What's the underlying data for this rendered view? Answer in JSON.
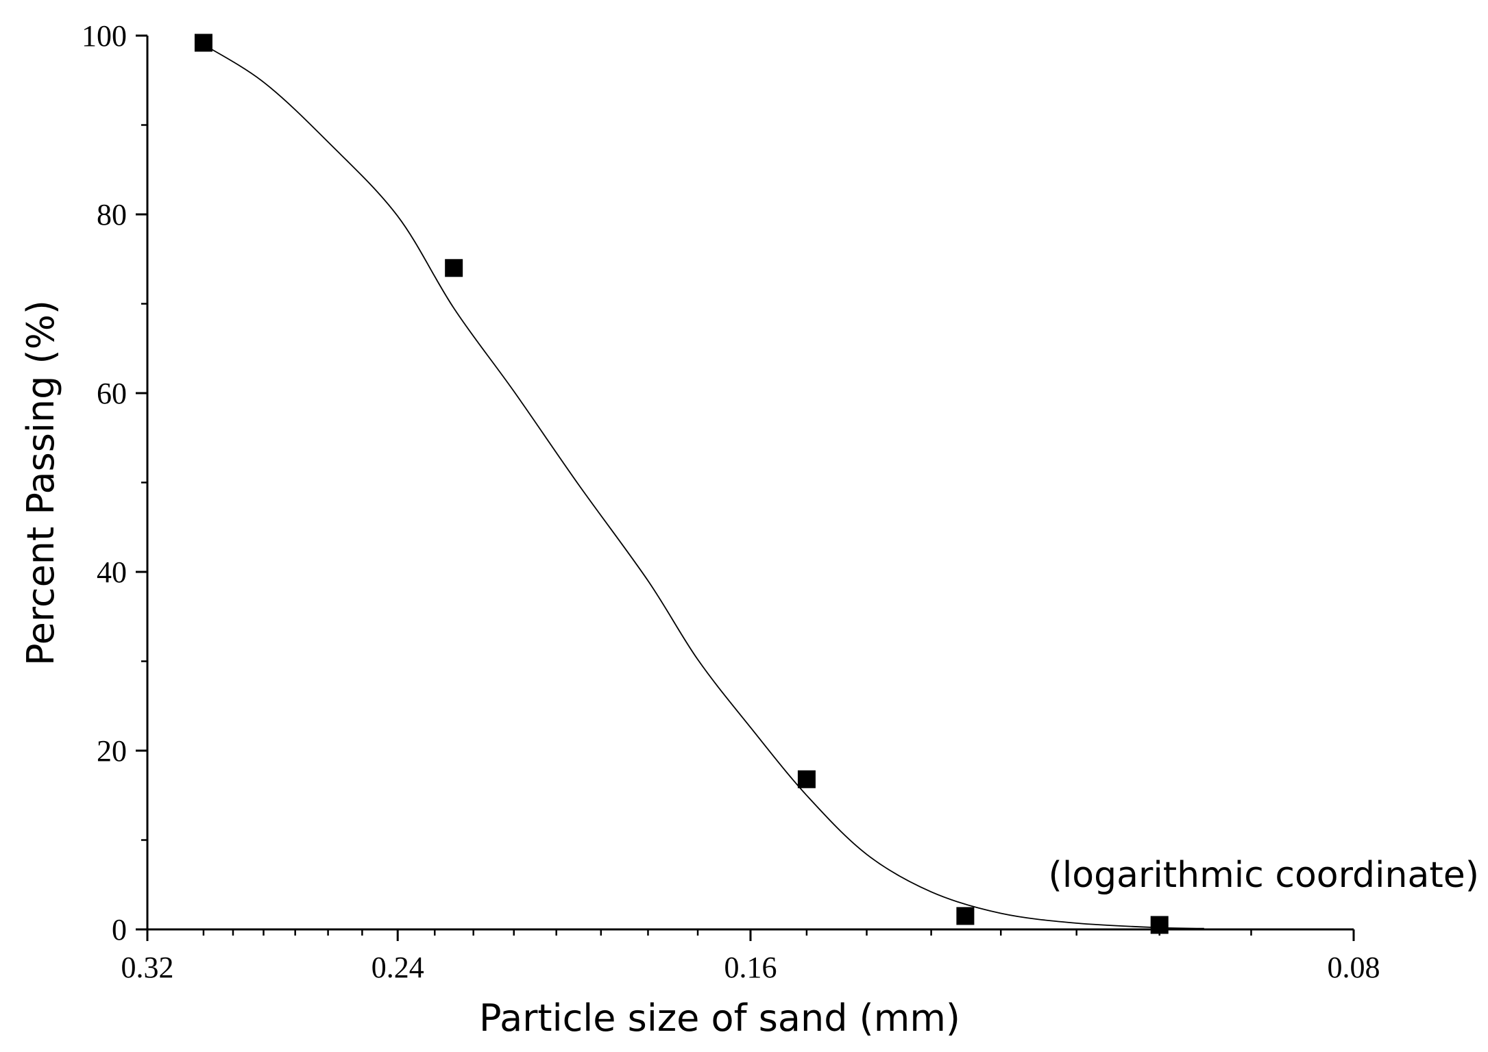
{
  "chart_data": {
    "type": "scatter",
    "title": "",
    "xlabel": "Particle size of sand (mm)",
    "ylabel": "Percent Passing (%)",
    "x_scale": "log",
    "x_reversed": true,
    "xlim": [
      0.32,
      0.08
    ],
    "ylim": [
      0,
      100
    ],
    "x_ticks": [
      {
        "value": 0.32,
        "label": "0.32"
      },
      {
        "value": 0.24,
        "label": "0.24"
      },
      {
        "value": 0.16,
        "label": "0.16"
      },
      {
        "value": 0.08,
        "label": "0.08"
      }
    ],
    "y_ticks": [
      {
        "value": 0,
        "label": "0"
      },
      {
        "value": 20,
        "label": "20"
      },
      {
        "value": 40,
        "label": "40"
      },
      {
        "value": 60,
        "label": "60"
      },
      {
        "value": 80,
        "label": "80"
      },
      {
        "value": 100,
        "label": "100"
      }
    ],
    "x_minor_ticks": [
      0.3,
      0.29,
      0.28,
      0.27,
      0.26,
      0.25,
      0.23,
      0.22,
      0.21,
      0.2,
      0.19,
      0.18,
      0.17,
      0.15,
      0.14,
      0.13,
      0.12,
      0.11,
      0.1,
      0.09
    ],
    "y_minor_ticks": [
      10,
      30,
      50,
      70,
      90
    ],
    "grid": false,
    "series": [
      {
        "kind": "scatter",
        "marker": "square",
        "color": "#000000",
        "points": [
          {
            "x": 0.3,
            "y": 99.2
          },
          {
            "x": 0.225,
            "y": 74.0
          },
          {
            "x": 0.15,
            "y": 16.8
          },
          {
            "x": 0.125,
            "y": 1.5
          },
          {
            "x": 0.1,
            "y": 0.5
          }
        ]
      },
      {
        "kind": "line",
        "color": "#000000",
        "points": [
          {
            "x": 0.3,
            "y": 99.0
          },
          {
            "x": 0.28,
            "y": 94.8
          },
          {
            "x": 0.26,
            "y": 88.1
          },
          {
            "x": 0.24,
            "y": 79.8
          },
          {
            "x": 0.225,
            "y": 69.5
          },
          {
            "x": 0.21,
            "y": 60.2
          },
          {
            "x": 0.195,
            "y": 49.8
          },
          {
            "x": 0.18,
            "y": 39.0
          },
          {
            "x": 0.17,
            "y": 30.2
          },
          {
            "x": 0.16,
            "y": 22.6
          },
          {
            "x": 0.15,
            "y": 15.0
          },
          {
            "x": 0.14,
            "y": 8.4
          },
          {
            "x": 0.13,
            "y": 4.2
          },
          {
            "x": 0.12,
            "y": 1.8
          },
          {
            "x": 0.11,
            "y": 0.7
          },
          {
            "x": 0.1,
            "y": 0.2
          },
          {
            "x": 0.095,
            "y": 0.1
          }
        ]
      }
    ],
    "annotations": [
      {
        "text": "(logarithmic coordinate)"
      }
    ]
  }
}
